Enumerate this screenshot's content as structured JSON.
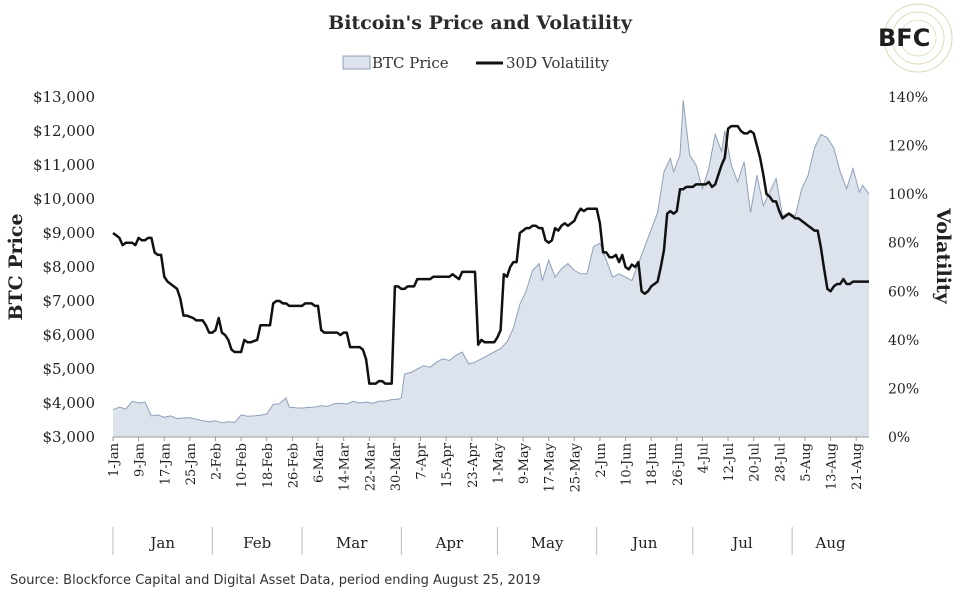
{
  "logo": {
    "text": "BFC"
  },
  "chart_data": {
    "type": "area+line",
    "title": "Bitcoin's Price and Volatility",
    "legend": [
      {
        "name": "BTC Price",
        "kind": "area",
        "color": "#dde3ec",
        "stroke": "#8fa0ba"
      },
      {
        "name": "30D Volatility",
        "kind": "line",
        "color": "#111111"
      }
    ],
    "ylabel": "BTC Price",
    "y2label": "Volatility",
    "ylim": [
      3000,
      13000
    ],
    "y2lim": [
      0,
      140
    ],
    "yticks": [
      "$3,000",
      "$4,000",
      "$5,000",
      "$6,000",
      "$7,000",
      "$8,000",
      "$9,000",
      "$10,000",
      "$11,000",
      "$12,000",
      "$13,000"
    ],
    "y2ticks": [
      "0%",
      "20%",
      "40%",
      "60%",
      "80%",
      "100%",
      "120%",
      "140%"
    ],
    "xticks": [
      "1-Jan",
      "9-Jan",
      "17-Jan",
      "25-Jan",
      "2-Feb",
      "10-Feb",
      "18-Feb",
      "26-Feb",
      "6-Mar",
      "14-Mar",
      "22-Mar",
      "30-Mar",
      "7-Apr",
      "15-Apr",
      "23-Apr",
      "1-May",
      "9-May",
      "17-May",
      "25-May",
      "2-Jun",
      "10-Jun",
      "18-Jun",
      "26-Jun",
      "4-Jul",
      "12-Jul",
      "20-Jul",
      "28-Jul",
      "5-Aug",
      "13-Aug",
      "21-Aug"
    ],
    "months": [
      "Jan",
      "Feb",
      "Mar",
      "Apr",
      "May",
      "Jun",
      "Jul",
      "Aug"
    ],
    "x_day_range": [
      1,
      237
    ],
    "price_series": [
      [
        1,
        3800
      ],
      [
        3,
        3880
      ],
      [
        5,
        3820
      ],
      [
        7,
        4050
      ],
      [
        9,
        4000
      ],
      [
        11,
        4030
      ],
      [
        13,
        3620
      ],
      [
        15,
        3650
      ],
      [
        17,
        3580
      ],
      [
        19,
        3620
      ],
      [
        21,
        3540
      ],
      [
        23,
        3560
      ],
      [
        25,
        3570
      ],
      [
        27,
        3520
      ],
      [
        29,
        3480
      ],
      [
        31,
        3450
      ],
      [
        33,
        3480
      ],
      [
        35,
        3420
      ],
      [
        37,
        3450
      ],
      [
        39,
        3430
      ],
      [
        41,
        3650
      ],
      [
        43,
        3610
      ],
      [
        45,
        3620
      ],
      [
        47,
        3640
      ],
      [
        49,
        3680
      ],
      [
        51,
        3960
      ],
      [
        53,
        3980
      ],
      [
        55,
        4150
      ],
      [
        56,
        3880
      ],
      [
        58,
        3860
      ],
      [
        60,
        3850
      ],
      [
        62,
        3870
      ],
      [
        64,
        3880
      ],
      [
        66,
        3920
      ],
      [
        68,
        3900
      ],
      [
        70,
        3980
      ],
      [
        72,
        3990
      ],
      [
        74,
        3970
      ],
      [
        76,
        4050
      ],
      [
        78,
        4000
      ],
      [
        80,
        4030
      ],
      [
        82,
        3990
      ],
      [
        84,
        4050
      ],
      [
        86,
        4060
      ],
      [
        88,
        4100
      ],
      [
        90,
        4110
      ],
      [
        91,
        4150
      ],
      [
        92,
        4850
      ],
      [
        94,
        4900
      ],
      [
        96,
        5000
      ],
      [
        98,
        5100
      ],
      [
        100,
        5050
      ],
      [
        102,
        5200
      ],
      [
        104,
        5300
      ],
      [
        106,
        5250
      ],
      [
        108,
        5400
      ],
      [
        110,
        5500
      ],
      [
        112,
        5150
      ],
      [
        114,
        5200
      ],
      [
        116,
        5300
      ],
      [
        118,
        5400
      ],
      [
        120,
        5500
      ],
      [
        122,
        5600
      ],
      [
        124,
        5800
      ],
      [
        126,
        6200
      ],
      [
        128,
        6900
      ],
      [
        130,
        7300
      ],
      [
        132,
        7900
      ],
      [
        134,
        8100
      ],
      [
        135,
        7600
      ],
      [
        137,
        8200
      ],
      [
        139,
        7700
      ],
      [
        141,
        7950
      ],
      [
        143,
        8100
      ],
      [
        145,
        7900
      ],
      [
        147,
        7800
      ],
      [
        149,
        7800
      ],
      [
        151,
        8600
      ],
      [
        153,
        8700
      ],
      [
        155,
        8200
      ],
      [
        157,
        7700
      ],
      [
        159,
        7800
      ],
      [
        161,
        7700
      ],
      [
        163,
        7600
      ],
      [
        165,
        8100
      ],
      [
        167,
        8600
      ],
      [
        169,
        9100
      ],
      [
        171,
        9600
      ],
      [
        173,
        10800
      ],
      [
        175,
        11200
      ],
      [
        176,
        10800
      ],
      [
        178,
        11300
      ],
      [
        179,
        12900
      ],
      [
        181,
        11300
      ],
      [
        183,
        11000
      ],
      [
        185,
        10300
      ],
      [
        187,
        10900
      ],
      [
        189,
        11900
      ],
      [
        191,
        11400
      ],
      [
        192,
        12000
      ],
      [
        194,
        11000
      ],
      [
        196,
        10500
      ],
      [
        198,
        11100
      ],
      [
        200,
        9600
      ],
      [
        202,
        10700
      ],
      [
        204,
        9800
      ],
      [
        206,
        10200
      ],
      [
        208,
        10600
      ],
      [
        210,
        9500
      ],
      [
        212,
        9600
      ],
      [
        214,
        9500
      ],
      [
        216,
        10300
      ],
      [
        218,
        10700
      ],
      [
        220,
        11500
      ],
      [
        222,
        11900
      ],
      [
        224,
        11800
      ],
      [
        226,
        11500
      ],
      [
        228,
        10800
      ],
      [
        230,
        10300
      ],
      [
        232,
        10900
      ],
      [
        234,
        10200
      ],
      [
        235,
        10400
      ],
      [
        237,
        10150
      ]
    ],
    "volatility_series": [
      [
        1,
        84
      ],
      [
        2,
        83
      ],
      [
        3,
        82
      ],
      [
        4,
        79
      ],
      [
        5,
        80
      ],
      [
        7,
        80
      ],
      [
        8,
        79
      ],
      [
        9,
        82
      ],
      [
        10,
        81
      ],
      [
        11,
        81
      ],
      [
        12,
        82
      ],
      [
        13,
        82
      ],
      [
        14,
        76
      ],
      [
        15,
        75
      ],
      [
        16,
        75
      ],
      [
        17,
        66
      ],
      [
        18,
        64
      ],
      [
        19,
        63
      ],
      [
        21,
        61
      ],
      [
        22,
        57
      ],
      [
        23,
        50
      ],
      [
        24,
        50
      ],
      [
        26,
        49
      ],
      [
        27,
        48
      ],
      [
        28,
        48
      ],
      [
        29,
        48
      ],
      [
        30,
        46
      ],
      [
        31,
        43
      ],
      [
        32,
        43
      ],
      [
        33,
        44
      ],
      [
        34,
        49
      ],
      [
        35,
        43
      ],
      [
        36,
        42
      ],
      [
        37,
        40
      ],
      [
        38,
        36
      ],
      [
        39,
        35
      ],
      [
        40,
        35
      ],
      [
        41,
        35
      ],
      [
        42,
        40
      ],
      [
        43,
        39
      ],
      [
        44,
        39
      ],
      [
        46,
        40
      ],
      [
        47,
        46
      ],
      [
        48,
        46
      ],
      [
        49,
        46
      ],
      [
        50,
        46
      ],
      [
        51,
        55
      ],
      [
        52,
        56
      ],
      [
        53,
        56
      ],
      [
        54,
        55
      ],
      [
        55,
        55
      ],
      [
        56,
        54
      ],
      [
        57,
        54
      ],
      [
        58,
        54
      ],
      [
        59,
        54
      ],
      [
        60,
        54
      ],
      [
        61,
        55
      ],
      [
        62,
        55
      ],
      [
        63,
        55
      ],
      [
        64,
        54
      ],
      [
        65,
        54
      ],
      [
        66,
        44
      ],
      [
        67,
        43
      ],
      [
        68,
        43
      ],
      [
        70,
        43
      ],
      [
        71,
        43
      ],
      [
        72,
        42
      ],
      [
        73,
        43
      ],
      [
        74,
        43
      ],
      [
        75,
        37
      ],
      [
        76,
        37
      ],
      [
        77,
        37
      ],
      [
        78,
        37
      ],
      [
        79,
        36
      ],
      [
        80,
        32
      ],
      [
        81,
        22
      ],
      [
        82,
        22
      ],
      [
        83,
        22
      ],
      [
        84,
        23
      ],
      [
        85,
        23
      ],
      [
        86,
        22
      ],
      [
        88,
        22
      ],
      [
        89,
        62
      ],
      [
        90,
        62
      ],
      [
        91,
        61
      ],
      [
        92,
        61
      ],
      [
        93,
        62
      ],
      [
        95,
        62
      ],
      [
        96,
        65
      ],
      [
        98,
        65
      ],
      [
        100,
        65
      ],
      [
        101,
        66
      ],
      [
        103,
        66
      ],
      [
        104,
        66
      ],
      [
        106,
        66
      ],
      [
        107,
        67
      ],
      [
        108,
        66
      ],
      [
        109,
        65
      ],
      [
        110,
        68
      ],
      [
        111,
        68
      ],
      [
        112,
        68
      ],
      [
        113,
        68
      ],
      [
        114,
        68
      ],
      [
        115,
        38
      ],
      [
        116,
        40
      ],
      [
        117,
        39
      ],
      [
        119,
        39
      ],
      [
        120,
        39
      ],
      [
        121,
        41
      ],
      [
        122,
        44
      ],
      [
        123,
        67
      ],
      [
        124,
        66
      ],
      [
        125,
        70
      ],
      [
        126,
        72
      ],
      [
        127,
        72
      ],
      [
        128,
        84
      ],
      [
        129,
        85
      ],
      [
        130,
        86
      ],
      [
        131,
        86
      ],
      [
        132,
        87
      ],
      [
        133,
        87
      ],
      [
        134,
        86
      ],
      [
        135,
        86
      ],
      [
        136,
        81
      ],
      [
        137,
        80
      ],
      [
        138,
        81
      ],
      [
        139,
        86
      ],
      [
        140,
        85
      ],
      [
        141,
        87
      ],
      [
        142,
        88
      ],
      [
        143,
        87
      ],
      [
        144,
        88
      ],
      [
        145,
        89
      ],
      [
        146,
        92
      ],
      [
        147,
        94
      ],
      [
        148,
        93
      ],
      [
        149,
        94
      ],
      [
        150,
        94
      ],
      [
        151,
        94
      ],
      [
        152,
        94
      ],
      [
        153,
        88
      ],
      [
        154,
        76
      ],
      [
        155,
        76
      ],
      [
        156,
        74
      ],
      [
        157,
        74
      ],
      [
        158,
        75
      ],
      [
        159,
        72
      ],
      [
        160,
        75
      ],
      [
        161,
        70
      ],
      [
        162,
        69
      ],
      [
        163,
        71
      ],
      [
        164,
        70
      ],
      [
        165,
        72
      ],
      [
        166,
        60
      ],
      [
        167,
        59
      ],
      [
        168,
        60
      ],
      [
        169,
        62
      ],
      [
        170,
        63
      ],
      [
        171,
        64
      ],
      [
        172,
        70
      ],
      [
        173,
        77
      ],
      [
        174,
        92
      ],
      [
        175,
        93
      ],
      [
        176,
        92
      ],
      [
        177,
        93
      ],
      [
        178,
        102
      ],
      [
        179,
        102
      ],
      [
        180,
        103
      ],
      [
        181,
        103
      ],
      [
        182,
        103
      ],
      [
        183,
        104
      ],
      [
        184,
        104
      ],
      [
        185,
        104
      ],
      [
        186,
        104
      ],
      [
        187,
        105
      ],
      [
        188,
        103
      ],
      [
        189,
        104
      ],
      [
        190,
        108
      ],
      [
        191,
        112
      ],
      [
        192,
        115
      ],
      [
        193,
        127
      ],
      [
        194,
        128
      ],
      [
        195,
        128
      ],
      [
        196,
        128
      ],
      [
        197,
        126
      ],
      [
        198,
        125
      ],
      [
        199,
        125
      ],
      [
        200,
        126
      ],
      [
        201,
        125
      ],
      [
        202,
        120
      ],
      [
        203,
        115
      ],
      [
        204,
        108
      ],
      [
        205,
        100
      ],
      [
        206,
        99
      ],
      [
        207,
        97
      ],
      [
        208,
        97
      ],
      [
        209,
        93
      ],
      [
        210,
        90
      ],
      [
        211,
        91
      ],
      [
        212,
        92
      ],
      [
        213,
        91
      ],
      [
        214,
        90
      ],
      [
        215,
        90
      ],
      [
        216,
        89
      ],
      [
        217,
        88
      ],
      [
        218,
        87
      ],
      [
        219,
        86
      ],
      [
        220,
        85
      ],
      [
        221,
        85
      ],
      [
        222,
        78
      ],
      [
        223,
        69
      ],
      [
        224,
        61
      ],
      [
        225,
        60
      ],
      [
        226,
        62
      ],
      [
        227,
        63
      ],
      [
        228,
        63
      ],
      [
        229,
        65
      ],
      [
        230,
        63
      ],
      [
        231,
        63
      ],
      [
        232,
        64
      ],
      [
        233,
        64
      ],
      [
        234,
        64
      ],
      [
        235,
        64
      ],
      [
        237,
        64
      ]
    ]
  },
  "source_note": "Source: Blockforce Capital and Digital Asset Data, period ending August 25, 2019"
}
